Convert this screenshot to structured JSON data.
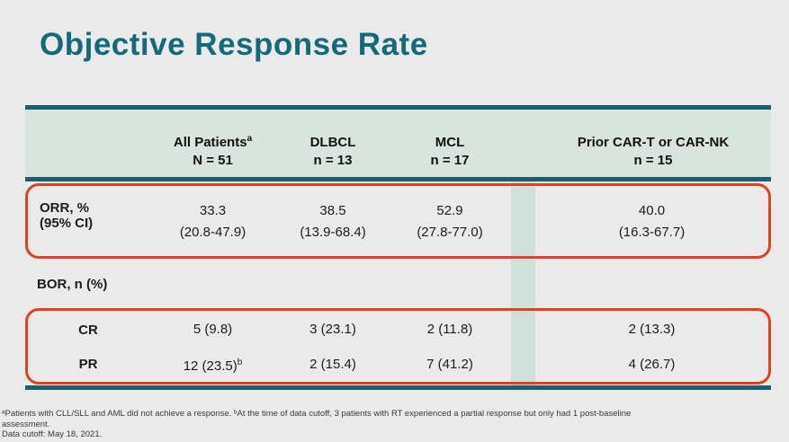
{
  "slide": {
    "title": "Objective Response Rate"
  },
  "table": {
    "columns": [
      {
        "label": "All Patients",
        "sup": "a",
        "sub": "N = 51"
      },
      {
        "label": "DLBCL",
        "sup": "",
        "sub": "n = 13"
      },
      {
        "label": "MCL",
        "sup": "",
        "sub": "n = 17"
      },
      {
        "label": "Prior CAR-T or CAR-NK",
        "sup": "",
        "sub": "n = 15"
      }
    ],
    "orr": {
      "label1": "ORR, %",
      "label2": "(95% CI)",
      "values": [
        {
          "pct": "33.3",
          "ci": "(20.8-47.9)"
        },
        {
          "pct": "38.5",
          "ci": "(13.9-68.4)"
        },
        {
          "pct": "52.9",
          "ci": "(27.8-77.0)"
        },
        {
          "pct": "40.0",
          "ci": "(16.3-67.7)"
        }
      ]
    },
    "bor_label": "BOR, n (%)",
    "cr": {
      "label": "CR",
      "values": [
        "5 (9.8)",
        "3 (23.1)",
        "2 (11.8)",
        "2 (13.3)"
      ]
    },
    "pr": {
      "label": "PR",
      "values": [
        "12 (23.5)",
        "2 (15.4)",
        "7 (41.2)",
        "4 (26.7)"
      ],
      "value1_sup": "b"
    }
  },
  "footnotes": {
    "line1": "ᵃPatients with CLL/SLL and AML did not achieve a response. ᵇAt the time of data cutoff, 3 patients with RT experienced a partial response but only had 1 post-baseline",
    "line2": "assessment.",
    "line3": "Data cutoff: May 18, 2021."
  },
  "colors": {
    "teal_border": "#1c5f6d",
    "title_teal": "#15697a",
    "header_bg": "#d9e4df",
    "band_bg": "#cde0da",
    "highlight_red": "#e2401f",
    "slide_bg": "#e9eae9"
  }
}
